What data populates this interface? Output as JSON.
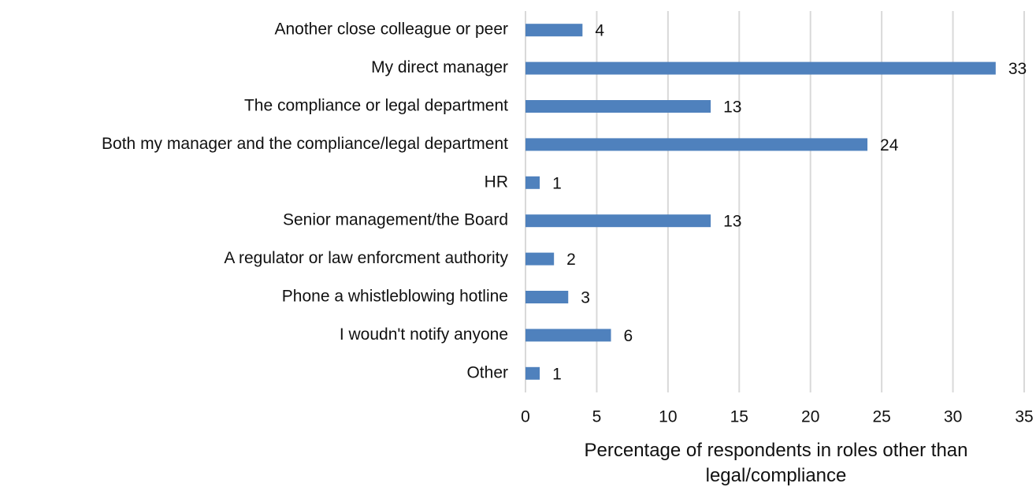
{
  "chart_data": {
    "type": "barh",
    "categories": [
      "Another close colleague or peer",
      "My direct manager",
      "The compliance or legal department",
      "Both my manager and the compliance/legal department",
      "HR",
      "Senior management/the Board",
      "A regulator or law enforcment authority",
      "Phone a whistleblowing hotline",
      "I woudn't notify anyone",
      "Other"
    ],
    "values": [
      4,
      33,
      13,
      24,
      1,
      13,
      2,
      3,
      6,
      1
    ],
    "color": "#4f81bd",
    "xlim": [
      0,
      35
    ],
    "xticks": [
      0,
      5,
      10,
      15,
      20,
      25,
      30,
      35
    ],
    "grid": true,
    "xlabel": "Percentage of respondents in roles other than legal/compliance"
  }
}
